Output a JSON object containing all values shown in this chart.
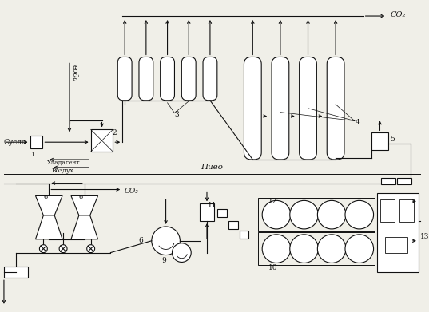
{
  "bg_color": "#f0efe8",
  "line_color": "#111111",
  "fig_width": 5.37,
  "fig_height": 3.91,
  "dpi": 100,
  "labels": {
    "co2_top": "CO₂",
    "voda": "вода",
    "suslo": "Сусло",
    "hladagent": "Хладагент",
    "vozduh": "Воздух",
    "pivo": "Пиво",
    "co2_bottom": "CO₂",
    "n1": "1",
    "n2": "2",
    "n3": "3",
    "n4": "4",
    "n5": "5",
    "n6a": "6",
    "n6b": "6",
    "n9": "9",
    "n10": "10",
    "n11": "11",
    "n12": "12",
    "n13": "13"
  }
}
